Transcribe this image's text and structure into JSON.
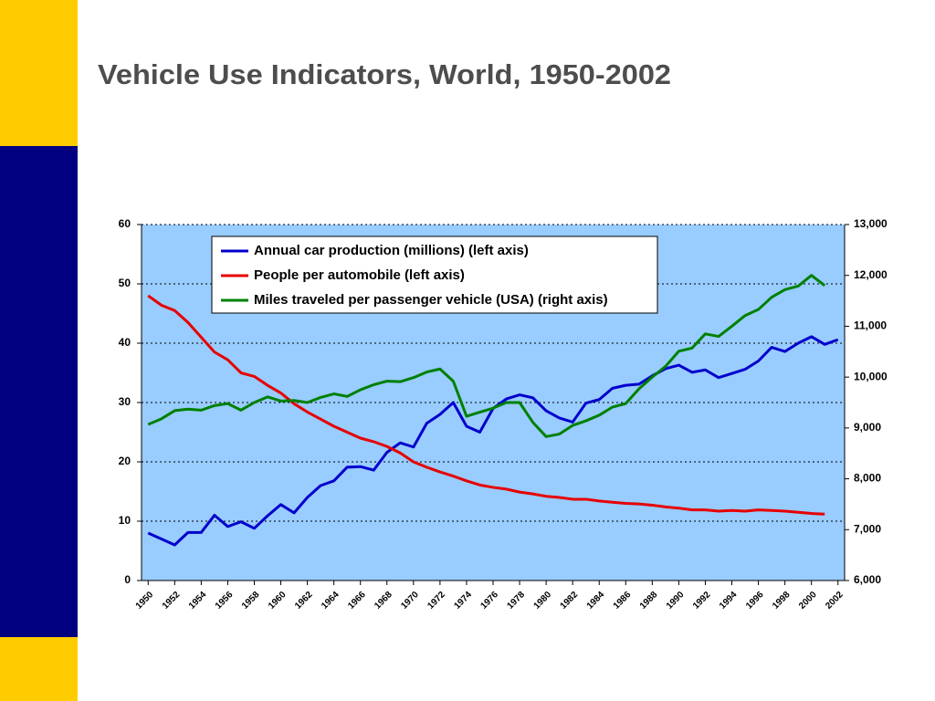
{
  "chart_data": {
    "type": "line",
    "title": "Vehicle Use Indicators, World, 1950-2002",
    "x": [
      1950,
      1951,
      1952,
      1953,
      1954,
      1955,
      1956,
      1957,
      1958,
      1959,
      1960,
      1961,
      1962,
      1963,
      1964,
      1965,
      1966,
      1967,
      1968,
      1969,
      1970,
      1971,
      1972,
      1973,
      1974,
      1975,
      1976,
      1977,
      1978,
      1979,
      1980,
      1981,
      1982,
      1983,
      1984,
      1985,
      1986,
      1987,
      1988,
      1989,
      1990,
      1991,
      1992,
      1993,
      1994,
      1995,
      1996,
      1997,
      1998,
      1999,
      2000,
      2001,
      2002
    ],
    "xlim": [
      1949.5,
      2002.5
    ],
    "xticks": [
      1950,
      1952,
      1954,
      1956,
      1958,
      1960,
      1962,
      1964,
      1966,
      1968,
      1970,
      1972,
      1974,
      1976,
      1978,
      1980,
      1982,
      1984,
      1986,
      1988,
      1990,
      1992,
      1994,
      1996,
      1998,
      2000,
      2002
    ],
    "ylim": [
      0,
      60
    ],
    "yticks": [
      0,
      10,
      20,
      30,
      40,
      50,
      60
    ],
    "y2lim": [
      6000,
      13000
    ],
    "y2ticks": [
      {
        "value": 6000,
        "label": "6,000"
      },
      {
        "value": 7000,
        "label": "7,000"
      },
      {
        "value": 8000,
        "label": "8,000"
      },
      {
        "value": 9000,
        "label": "9,000"
      },
      {
        "value": 10000,
        "label": "10,000"
      },
      {
        "value": 11000,
        "label": "11,000"
      },
      {
        "value": 12000,
        "label": "12,000"
      },
      {
        "value": 13000,
        "label": "13,000"
      }
    ],
    "grid": true,
    "legend": "top",
    "series": [
      {
        "name": "Annual car production (millions) (left axis)",
        "color": "#0000cc",
        "values": [
          8,
          7,
          6,
          8.1,
          8.1,
          11,
          9.1,
          9.9,
          8.8,
          10.9,
          12.8,
          11.4,
          14,
          16,
          16.8,
          19.1,
          19.2,
          18.6,
          21.6,
          23.2,
          22.5,
          26.5,
          28,
          30,
          26,
          25,
          29,
          30.6,
          31.3,
          30.8,
          28.6,
          27.4,
          26.7,
          29.9,
          30.5,
          32.4,
          32.9,
          33.1,
          34.5,
          35.7,
          36.3,
          35.1,
          35.5,
          34.2,
          34.9,
          35.6,
          37,
          39.3,
          38.6,
          40,
          41.1,
          39.8,
          40.6
        ]
      },
      {
        "name": "People per automobile (left axis)",
        "color": "#e60000",
        "values": [
          48,
          46.4,
          45.5,
          43.5,
          41,
          38.5,
          37.2,
          35,
          34.4,
          32.9,
          31.6,
          29.8,
          28.4,
          27.2,
          26,
          25,
          24,
          23.4,
          22.6,
          21.5,
          20,
          19.1,
          18.3,
          17.6,
          16.8,
          16.1,
          15.7,
          15.4,
          14.9,
          14.6,
          14.2,
          14,
          13.7,
          13.7,
          13.4,
          13.2,
          13,
          12.9,
          12.7,
          12.4,
          12.2,
          11.9,
          11.9,
          11.7,
          11.8,
          11.7,
          11.9,
          11.8,
          11.7,
          11.5,
          11.3,
          11.2,
          null
        ]
      },
      {
        "name": "Miles traveled per passenger vehicle (USA) (right axis)",
        "color": "#008000",
        "axis": "y2",
        "values": [
          9070,
          9180,
          9340,
          9370,
          9350,
          9440,
          9480,
          9350,
          9500,
          9610,
          9530,
          9540,
          9500,
          9600,
          9670,
          9620,
          9750,
          9850,
          9920,
          9910,
          9990,
          10100,
          10160,
          9920,
          9230,
          9310,
          9390,
          9500,
          9500,
          9110,
          8830,
          8880,
          9050,
          9140,
          9250,
          9410,
          9480,
          9770,
          10000,
          10210,
          10510,
          10570,
          10850,
          10800,
          11000,
          11210,
          11330,
          11570,
          11720,
          11790,
          12000,
          11800,
          null
        ]
      }
    ]
  }
}
